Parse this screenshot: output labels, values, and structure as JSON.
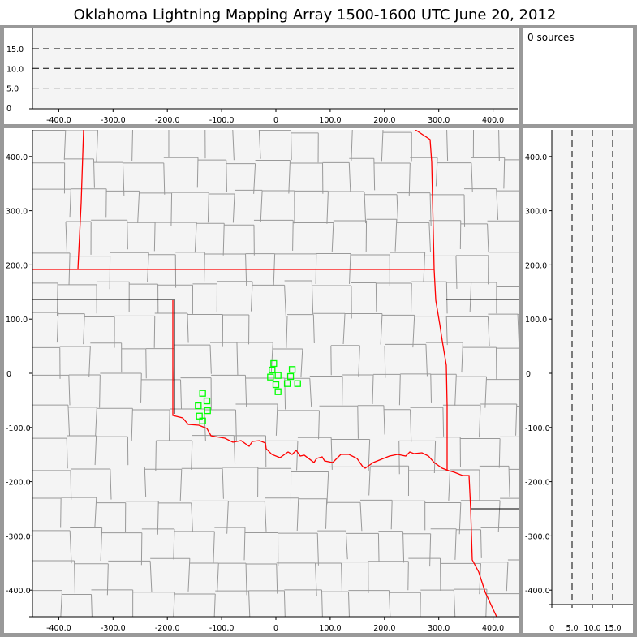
{
  "title": "Oklahoma Lightning Mapping Array   1500-1600 UTC  June 20, 2012",
  "source_count_label": "0 sources",
  "colors": {
    "panel_background": "#f4f4f4",
    "state_border": "#ff0000",
    "county_border": "#999999",
    "station_marker": "#00ff00",
    "frame": "#999999"
  },
  "top_panel": {
    "y_ticks": [
      {
        "value": 0,
        "label": "0"
      },
      {
        "value": 5,
        "label": "5.0"
      },
      {
        "value": 10,
        "label": "10.0"
      },
      {
        "value": 15,
        "label": "15.0"
      }
    ],
    "x_ticks": [
      {
        "value": -400,
        "label": "-400.0"
      },
      {
        "value": -300,
        "label": "-300.0"
      },
      {
        "value": -200,
        "label": "-200.0"
      },
      {
        "value": -100,
        "label": "-100.0"
      },
      {
        "value": 0,
        "label": "0"
      },
      {
        "value": 100,
        "label": "100.0"
      },
      {
        "value": 200,
        "label": "200.0"
      },
      {
        "value": 300,
        "label": "300.0"
      },
      {
        "value": 400,
        "label": "400.0"
      }
    ],
    "dashed_levels": [
      5,
      10,
      15
    ]
  },
  "map_panel": {
    "x_ticks": [
      {
        "value": -400,
        "label": "-400.0"
      },
      {
        "value": -300,
        "label": "-300.0"
      },
      {
        "value": -200,
        "label": "-200.0"
      },
      {
        "value": -100,
        "label": "-100.0"
      },
      {
        "value": 0,
        "label": "0"
      },
      {
        "value": 100,
        "label": "100.0"
      },
      {
        "value": 200,
        "label": "200.0"
      },
      {
        "value": 300,
        "label": "300.0"
      },
      {
        "value": 400,
        "label": "400.0"
      }
    ],
    "y_ticks": [
      {
        "value": 400,
        "label": "400.0"
      },
      {
        "value": 300,
        "label": "300.0"
      },
      {
        "value": 200,
        "label": "200.0"
      },
      {
        "value": 100,
        "label": "100.0"
      },
      {
        "value": 0,
        "label": "0"
      },
      {
        "value": -100,
        "label": "-100.0"
      },
      {
        "value": -200,
        "label": "-200.0"
      },
      {
        "value": -300,
        "label": "-300.0"
      },
      {
        "value": -400,
        "label": "-400.0"
      }
    ],
    "stations_km": [
      [
        -4,
        18
      ],
      [
        -7,
        6
      ],
      [
        -10,
        -7
      ],
      [
        4,
        -4
      ],
      [
        0,
        -21
      ],
      [
        4,
        -34
      ],
      [
        30,
        7
      ],
      [
        27,
        -6
      ],
      [
        21,
        -19
      ],
      [
        40,
        -19
      ],
      [
        -135,
        -37
      ],
      [
        -127,
        -51
      ],
      [
        -143,
        -60
      ],
      [
        -126,
        -69
      ],
      [
        -141,
        -79
      ],
      [
        -135,
        -88
      ]
    ]
  },
  "side_panel": {
    "x_ticks": [
      {
        "value": 0,
        "label": "0"
      },
      {
        "value": 5,
        "label": "5.0"
      },
      {
        "value": 10,
        "label": "10.0"
      },
      {
        "value": 15,
        "label": "15.0"
      }
    ],
    "dashed_levels": [
      5,
      10,
      15
    ]
  }
}
